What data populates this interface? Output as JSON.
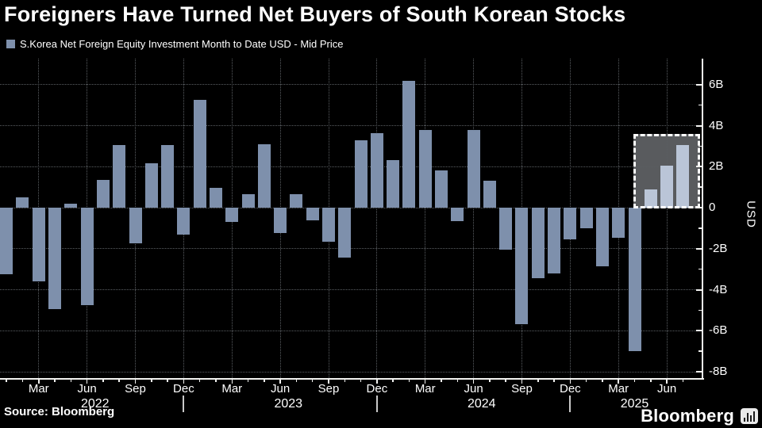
{
  "title": "Foreigners Have Turned Net Buyers of South Korean Stocks",
  "legend": {
    "label": "S.Korea Net Foreign Equity Investment Month to Date USD - Mid Price",
    "marker_color": "#7e90ac"
  },
  "footer": {
    "source": "Source: Bloomberg",
    "brand": "Bloomberg",
    "brand_icon": "bar-chart-icon"
  },
  "chart_data": {
    "type": "bar",
    "series_name": "S.Korea Net Foreign Equity Investment Month to Date USD - Mid Price",
    "unit": "billions USD",
    "ylabel": "USD",
    "ylim": [
      -8.4,
      7.3
    ],
    "grid": true,
    "legend_position": "top-left",
    "background_color": "#000000",
    "bar_color": "#7e90ac",
    "grid_color": "#5a5e62",
    "yticks": [
      {
        "value": 6,
        "label": "6B"
      },
      {
        "value": 4,
        "label": "4B"
      },
      {
        "value": 2,
        "label": "2B"
      },
      {
        "value": 0,
        "label": "0"
      },
      {
        "value": -2,
        "label": "-2B"
      },
      {
        "value": -4,
        "label": "-4B"
      },
      {
        "value": -6,
        "label": "-6B"
      },
      {
        "value": -8,
        "label": "-8B"
      }
    ],
    "minor_ytick_values": [
      5,
      3,
      1,
      -1,
      -3,
      -5,
      -7
    ],
    "months": [
      "Jan 2022",
      "Feb 2022",
      "Mar 2022",
      "Apr 2022",
      "May 2022",
      "Jun 2022",
      "Jul 2022",
      "Aug 2022",
      "Sep 2022",
      "Oct 2022",
      "Nov 2022",
      "Dec 2022",
      "Jan 2023",
      "Feb 2023",
      "Mar 2023",
      "Apr 2023",
      "May 2023",
      "Jun 2023",
      "Jul 2023",
      "Aug 2023",
      "Sep 2023",
      "Oct 2023",
      "Nov 2023",
      "Dec 2023",
      "Jan 2024",
      "Feb 2024",
      "Mar 2024",
      "Apr 2024",
      "May 2024",
      "Jun 2024",
      "Jul 2024",
      "Aug 2024",
      "Sep 2024",
      "Oct 2024",
      "Nov 2024",
      "Dec 2024",
      "Jan 2025",
      "Feb 2025",
      "Mar 2025",
      "Apr 2025",
      "May 2025",
      "Jun 2025",
      "Jul 2025"
    ],
    "values": [
      -3.25,
      0.5,
      -3.6,
      -4.95,
      0.2,
      -4.75,
      1.35,
      3.05,
      -1.75,
      2.15,
      3.05,
      -1.3,
      5.25,
      0.95,
      -0.7,
      0.65,
      3.1,
      -1.25,
      0.65,
      -0.6,
      -1.65,
      -2.45,
      3.3,
      3.65,
      2.3,
      6.2,
      3.8,
      1.8,
      -0.65,
      3.8,
      1.3,
      -2.05,
      -5.7,
      -3.45,
      -3.2,
      -1.55,
      -1.0,
      -2.85,
      -1.45,
      -7.0,
      0.9,
      2.05,
      3.05
    ],
    "xticks": [
      {
        "index": 2,
        "label": "Mar"
      },
      {
        "index": 5,
        "label": "Jun"
      },
      {
        "index": 8,
        "label": "Sep"
      },
      {
        "index": 11,
        "label": "Dec"
      },
      {
        "index": 14,
        "label": "Mar"
      },
      {
        "index": 17,
        "label": "Jun"
      },
      {
        "index": 20,
        "label": "Sep"
      },
      {
        "index": 23,
        "label": "Dec"
      },
      {
        "index": 26,
        "label": "Mar"
      },
      {
        "index": 29,
        "label": "Jun"
      },
      {
        "index": 32,
        "label": "Sep"
      },
      {
        "index": 35,
        "label": "Dec"
      },
      {
        "index": 38,
        "label": "Mar"
      },
      {
        "index": 41,
        "label": "Jun"
      }
    ],
    "years": [
      {
        "label": "2022",
        "from": 0,
        "to": 11
      },
      {
        "label": "2023",
        "from": 12,
        "to": 23
      },
      {
        "label": "2024",
        "from": 24,
        "to": 35
      },
      {
        "label": "2025",
        "from": 36,
        "to": 42
      }
    ],
    "year_divider_indices": [
      11,
      23,
      35
    ],
    "highlight": {
      "from_index": 40,
      "to_index": 42,
      "bar_color": "#bac5d7",
      "box_fill_color": "#595b5e",
      "box_border": "dashed-white"
    }
  }
}
